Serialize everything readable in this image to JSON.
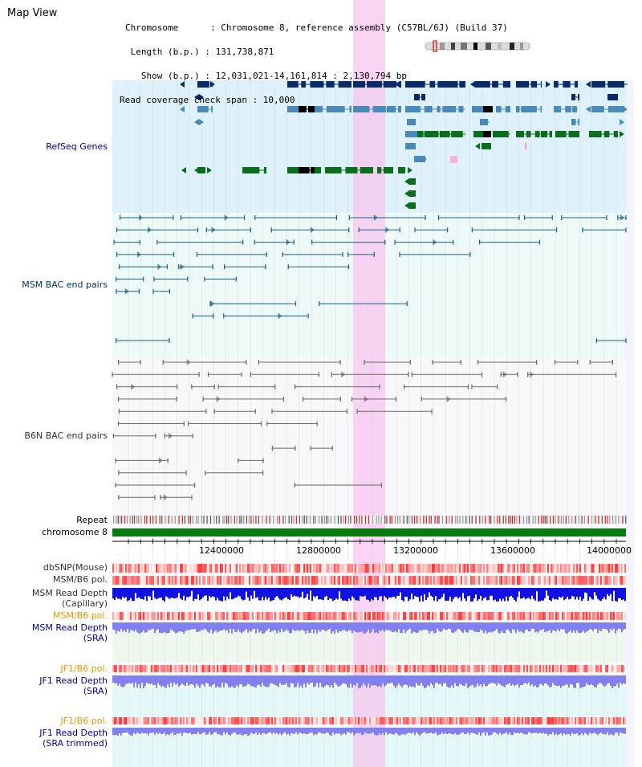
{
  "header": {
    "title": "Map View",
    "info_lines": [
      "Chromosome      : Chromosome 8, reference assembly (C57BL/6J) (Build 37)",
      " Length (b.p.) : 131,738,871",
      "   Show (b.p.) : 12,031,021-14,161,814 : 2,130,794 bp",
      "Read coverage check span : 10,000"
    ]
  },
  "tracks": {
    "refseq": {
      "label": "RefSeq Genes",
      "color": "#00008b"
    },
    "msm_bac": {
      "label": "MSM BAC end pairs",
      "color": "#003366"
    },
    "b6n_bac": {
      "label": "B6N BAC end pairs",
      "color": "#333333"
    },
    "repeat": {
      "label": "Repeat"
    },
    "chromosome": {
      "label": "chromosome 8"
    },
    "dbsnp": {
      "label": "dbSNP(Mouse)"
    },
    "msm_b6_pol": {
      "label": "MSM/B6 pol."
    },
    "msm_read_cap": {
      "line1": "MSM Read Depth",
      "line2": "(Capillary)"
    },
    "msm_b6_pol_sra": {
      "label": "MSM/B6 pol."
    },
    "msm_read_sra": {
      "line1": "MSM Read Depth",
      "line2": "(SRA)"
    },
    "jf1_b6_pol": {
      "label": "JF1/B6 pol."
    },
    "jf1_read_sra": {
      "line1": "JF1 Read Depth",
      "line2": "(SRA)"
    },
    "jf1_b6_pol_trim": {
      "label": "JF1/B6 pol."
    },
    "jf1_read_trim": {
      "line1": "JF1 Read Depth",
      "line2": "(SRA trimmed)"
    }
  },
  "axis": {
    "ticks": [
      "12400000",
      "12800000",
      "13200000",
      "13600000",
      "14000000"
    ]
  },
  "colors": {
    "gene_dark": "#0a2a6a",
    "gene_mid": "#4a8ab8",
    "gene_green": "#0a6e1a",
    "highlight": "#f5c8ee",
    "chrom_bar": "#0a7a10",
    "polymorphism": "#ff5050",
    "read_capillary": "#1010e0",
    "read_sra": "#8080f0",
    "label_orange": "#e69500",
    "label_blue": "#0000aa"
  }
}
